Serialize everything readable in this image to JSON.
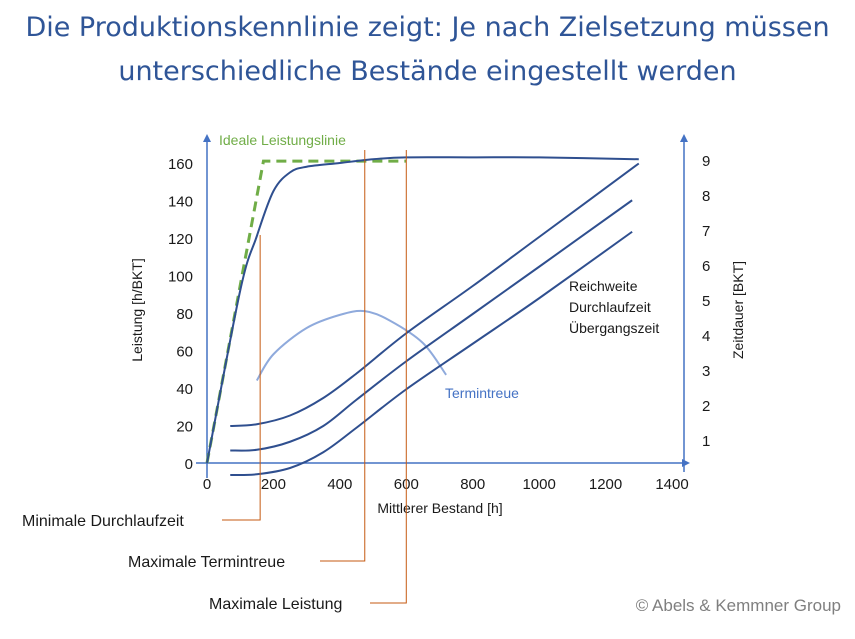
{
  "title": {
    "line1": "Die Produktionskennlinie zeigt: Je nach Zielsetzung müssen",
    "line2": "unterschiedliche Bestände eingestellt werden"
  },
  "copyright": "© Abels & Kemmner Group",
  "colors": {
    "title": "#2F5597",
    "axis": "#4472C4",
    "curve": "#2F4F8F",
    "termintreue": "#8FAADC",
    "ideal": "#70AD47",
    "marker": "#C55A11",
    "text": "#1a1a1a"
  },
  "chart_data": {
    "type": "line",
    "xlabel": "Mittlerer Bestand [h]",
    "ylabel": "Leistung [h/BKT]",
    "y2label": "Zeitdauer [BKT]",
    "xlim": [
      0,
      1400
    ],
    "ylim": [
      0,
      160
    ],
    "y2lim": [
      0,
      9
    ],
    "xticks": [
      "0",
      "200",
      "400",
      "600",
      "800",
      "1000",
      "1200",
      "1400"
    ],
    "yticks": [
      "0",
      "20",
      "40",
      "60",
      "80",
      "100",
      "120",
      "140",
      "160"
    ],
    "y2ticks": [
      "1",
      "2",
      "3",
      "4",
      "5",
      "6",
      "7",
      "8",
      "9"
    ],
    "series": [
      {
        "name": "Ideale Leistungslinie",
        "axis": "y",
        "style": "dashed",
        "x": [
          0,
          170,
          600
        ],
        "y": [
          0,
          161,
          161
        ]
      },
      {
        "axis": "y",
        "x": [
          0,
          100,
          150,
          200,
          250,
          300,
          400,
          500,
          600,
          800,
          1000,
          1300
        ],
        "y": [
          0,
          92,
          121,
          145,
          155,
          158,
          160,
          162,
          163,
          163,
          163,
          162
        ]
      },
      {
        "name": "Termintreue",
        "axis": "y",
        "x": [
          150,
          200,
          300,
          400,
          475,
          550,
          650,
          720
        ],
        "y": [
          44,
          58,
          72,
          79,
          81,
          76,
          64,
          47
        ]
      },
      {
        "name": "Reichweite",
        "axis": "y2",
        "x": [
          70,
          150,
          250,
          350,
          450,
          600,
          800,
          1000,
          1300
        ],
        "y": [
          1.4,
          1.45,
          1.7,
          2.2,
          2.9,
          4.05,
          5.4,
          6.8,
          8.9
        ]
      },
      {
        "name": "Durchlaufzeit",
        "axis": "y2",
        "x": [
          70,
          150,
          250,
          350,
          450,
          600,
          800,
          1000,
          1280
        ],
        "y": [
          0.7,
          0.72,
          0.95,
          1.4,
          2.15,
          3.25,
          4.6,
          5.95,
          7.85
        ]
      },
      {
        "name": "Übergangszeit",
        "axis": "y2",
        "x": [
          70,
          150,
          250,
          350,
          450,
          600,
          800,
          1000,
          1280
        ],
        "y": [
          0.0,
          0.02,
          0.2,
          0.65,
          1.35,
          2.45,
          3.75,
          5.05,
          6.95
        ]
      }
    ],
    "annotations": {
      "ideal_label": "Ideale Leistungslinie",
      "termintreue_label": "Termintreue",
      "curve_labels": [
        "Reichweite",
        "Durchlaufzeit",
        "Übergangszeit"
      ]
    },
    "markers": [
      {
        "label": "Minimale Durchlaufzeit",
        "x": 160
      },
      {
        "label": "Maximale Termintreue",
        "x": 475
      },
      {
        "label": "Maximale Leistung",
        "x": 600
      }
    ]
  }
}
